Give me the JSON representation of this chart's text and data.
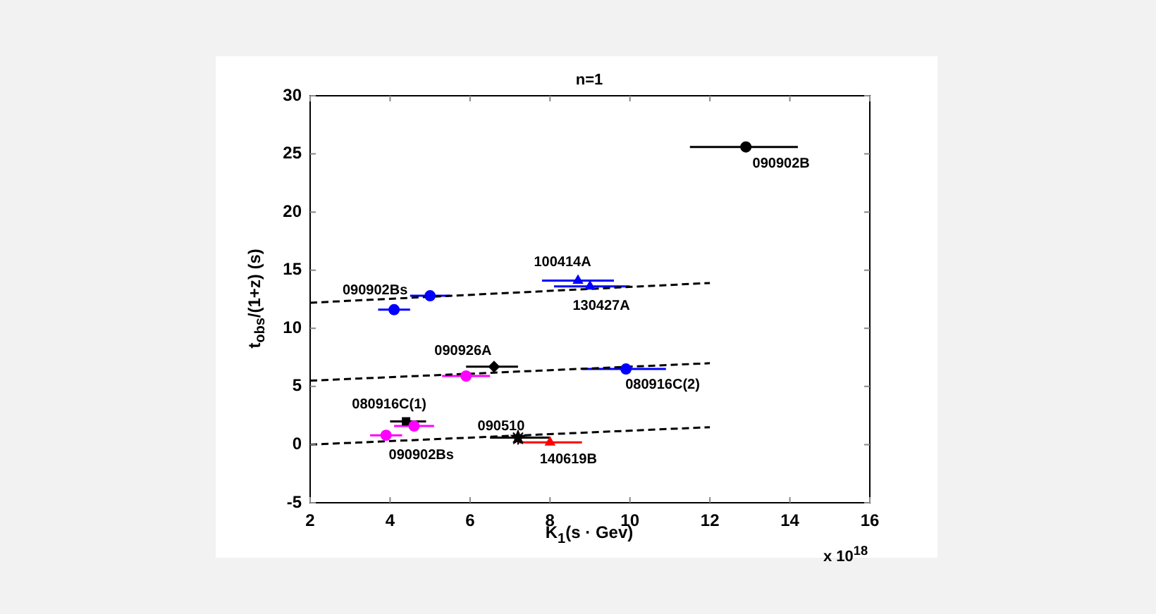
{
  "chart_data": {
    "type": "scatter",
    "title": "n=1",
    "xlabel": "K$_{1}$(s · Gev)",
    "ylabel": "t$_{obs}$/(1+z) (s)",
    "xlim": [
      2,
      16
    ],
    "xticks": [
      2,
      4,
      6,
      8,
      10,
      12,
      14,
      16
    ],
    "ylim": [
      -5,
      30
    ],
    "yticks": [
      -5,
      0,
      5,
      10,
      15,
      20,
      25,
      30
    ],
    "grid": false,
    "legend": false,
    "series": [
      {
        "type": "scatter",
        "color": "#000000",
        "marker": "circle",
        "x": [
          12.9
        ],
        "values": [
          25.6
        ],
        "xerrors": [
          [
            11.5,
            14.2
          ]
        ]
      },
      {
        "type": "scatter",
        "color": "#0000ff",
        "marker": "triangle",
        "x": [
          8.7,
          9.0
        ],
        "values": [
          14.1,
          13.6
        ],
        "xerrors": [
          [
            7.8,
            9.6
          ],
          [
            8.1,
            10.0
          ]
        ]
      },
      {
        "type": "scatter",
        "color": "#0000ff",
        "marker": "circle",
        "x": [
          5.0,
          4.1,
          9.9
        ],
        "values": [
          12.8,
          11.6,
          6.5
        ],
        "xerrors": [
          [
            4.5,
            5.5
          ],
          [
            3.7,
            4.5
          ],
          [
            8.8,
            10.9
          ]
        ]
      },
      {
        "type": "scatter",
        "color": "#000000",
        "marker": "diamond",
        "x": [
          6.6
        ],
        "values": [
          6.7
        ],
        "xerrors": [
          [
            5.9,
            7.2
          ]
        ]
      },
      {
        "type": "scatter",
        "color": "#ff00ff",
        "marker": "circle",
        "x": [
          5.9,
          4.6,
          3.9
        ],
        "values": [
          5.9,
          1.6,
          0.8
        ],
        "xerrors": [
          [
            5.3,
            6.5
          ],
          [
            4.1,
            5.1
          ],
          [
            3.5,
            4.3
          ]
        ]
      },
      {
        "type": "scatter",
        "color": "#000000",
        "marker": "square",
        "x": [
          4.4
        ],
        "values": [
          2.0
        ],
        "xerrors": [
          [
            4.0,
            4.9
          ]
        ]
      },
      {
        "type": "scatter",
        "color": "#000000",
        "marker": "star",
        "x": [
          7.2
        ],
        "values": [
          0.6
        ],
        "xerrors": [
          [
            6.5,
            8.0
          ]
        ]
      },
      {
        "type": "scatter",
        "color": "#ff0000",
        "marker": "triangle",
        "x": [
          8.0
        ],
        "values": [
          0.2
        ],
        "xerrors": [
          [
            7.2,
            8.8
          ]
        ]
      },
      {
        "type": "line",
        "color": "#000000",
        "line_style": "dashed",
        "marker": "none",
        "x": [
          2,
          12
        ],
        "values": [
          12.2,
          13.9
        ]
      },
      {
        "type": "line",
        "color": "#000000",
        "line_style": "dashed",
        "marker": "none",
        "x": [
          2,
          12
        ],
        "values": [
          5.5,
          7.0
        ]
      },
      {
        "type": "line",
        "color": "#000000",
        "line_style": "dashed",
        "marker": "none",
        "x": [
          2,
          12
        ],
        "values": [
          0,
          1.5
        ]
      }
    ],
    "annotations": [
      {
        "text": "090902B",
        "x": 12.9,
        "y": 25.6
      },
      {
        "text": "100414A",
        "x": 8.7,
        "y": 14.1
      },
      {
        "text": "090902Bs",
        "x": 5.0,
        "y": 12.8
      },
      {
        "text": "130427A",
        "x": 9.0,
        "y": 13.6
      },
      {
        "text": "090926A",
        "x": 6.6,
        "y": 6.7
      },
      {
        "text": "080916C(2)",
        "x": 9.9,
        "y": 6.5
      },
      {
        "text": "080916C(1)",
        "x": 4.4,
        "y": 2.0
      },
      {
        "text": "090510",
        "x": 7.2,
        "y": 0.6
      },
      {
        "text": "090902Bs",
        "x": 3.9,
        "y": 0.8
      },
      {
        "text": "140619B",
        "x": 8.0,
        "y": 0.2
      },
      "x 10$^{18}$"
    ]
  }
}
